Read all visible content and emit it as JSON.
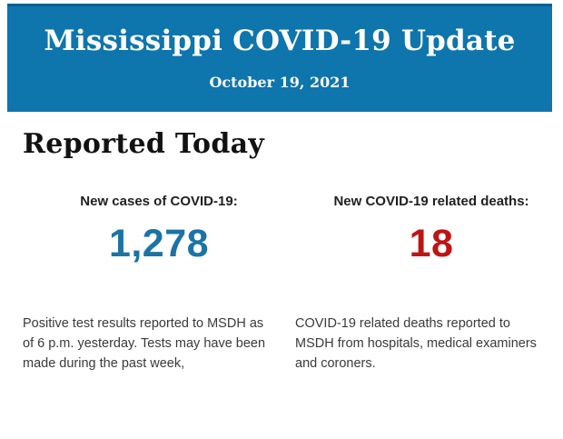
{
  "banner": {
    "title": "Mississippi COVID-19 Update",
    "date": "October 19, 2021"
  },
  "section": {
    "heading": "Reported Today"
  },
  "stats": {
    "cases": {
      "label": "New cases of COVID-19:",
      "value": "1,278",
      "description": "Positive test results reported to MSDH as of 6 p.m. yesterday. Tests may have been made during the past week,"
    },
    "deaths": {
      "label": "New COVID-19 related deaths:",
      "value": "18",
      "description": "COVID-19 related deaths reported to MSDH from hospitals, medical examiners and coroners."
    }
  },
  "colors": {
    "banner_background": "#0e75ad",
    "banner_border": "#0a5f8e",
    "banner_text": "#ffffff",
    "heading_text": "#121212",
    "label_text": "#1f1f1f",
    "body_text": "#3a3a3a",
    "cases_accent": "#1b74a4",
    "deaths_accent": "#c01414",
    "page_background": "#ffffff"
  }
}
